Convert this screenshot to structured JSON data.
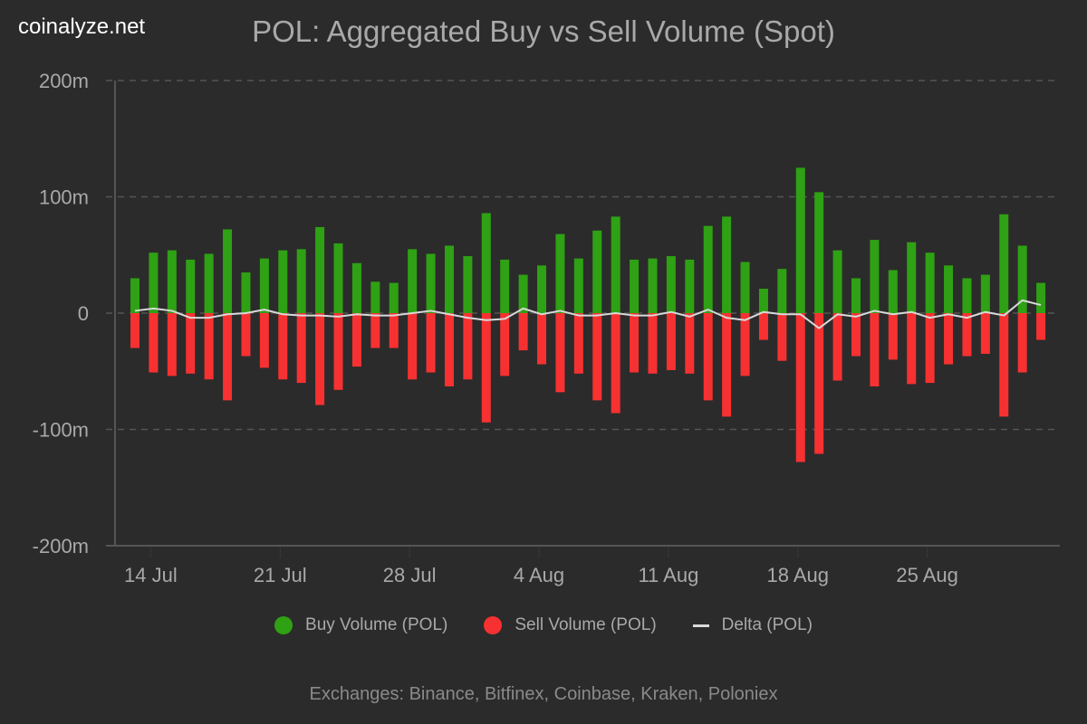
{
  "brand": "coinalyze.net",
  "chart_data": {
    "type": "bar",
    "title": "POL: Aggregated Buy vs Sell Volume (Spot)",
    "xlabel": "",
    "ylabel": "",
    "ylim": [
      -200,
      200
    ],
    "y_unit": "m",
    "y_ticks": [
      {
        "value": 200,
        "label": "200m"
      },
      {
        "value": 100,
        "label": "100m"
      },
      {
        "value": 0,
        "label": "0"
      },
      {
        "value": -100,
        "label": "-100m"
      },
      {
        "value": -200,
        "label": "-200m"
      }
    ],
    "x_ticks": [
      {
        "index": 1,
        "label": "14 Jul"
      },
      {
        "index": 8,
        "label": "21 Jul"
      },
      {
        "index": 15,
        "label": "28 Jul"
      },
      {
        "index": 22,
        "label": "4 Aug"
      },
      {
        "index": 29,
        "label": "11 Aug"
      },
      {
        "index": 36,
        "label": "18 Aug"
      },
      {
        "index": 43,
        "label": "25 Aug"
      }
    ],
    "grid": true,
    "legend_position": "bottom-center",
    "categories": [
      "13 Jul",
      "14 Jul",
      "15 Jul",
      "16 Jul",
      "17 Jul",
      "18 Jul",
      "19 Jul",
      "20 Jul",
      "21 Jul",
      "22 Jul",
      "23 Jul",
      "24 Jul",
      "25 Jul",
      "26 Jul",
      "27 Jul",
      "28 Jul",
      "29 Jul",
      "30 Jul",
      "31 Jul",
      "1 Aug",
      "2 Aug",
      "3 Aug",
      "4 Aug",
      "5 Aug",
      "6 Aug",
      "7 Aug",
      "8 Aug",
      "9 Aug",
      "10 Aug",
      "11 Aug",
      "12 Aug",
      "13 Aug",
      "14 Aug",
      "15 Aug",
      "16 Aug",
      "17 Aug",
      "18 Aug",
      "19 Aug",
      "20 Aug",
      "21 Aug",
      "22 Aug",
      "23 Aug",
      "24 Aug",
      "25 Aug",
      "26 Aug",
      "27 Aug",
      "28 Aug",
      "29 Aug",
      "30 Aug",
      "31 Aug"
    ],
    "series": [
      {
        "name": "Buy Volume (POL)",
        "type": "bar",
        "color": "#2fa114",
        "values": [
          30,
          52,
          54,
          46,
          51,
          72,
          35,
          47,
          54,
          55,
          74,
          60,
          43,
          27,
          26,
          55,
          51,
          58,
          49,
          86,
          46,
          33,
          41,
          68,
          47,
          71,
          83,
          46,
          47,
          49,
          46,
          75,
          83,
          44,
          21,
          38,
          125,
          104,
          54,
          30,
          63,
          37,
          61,
          52,
          41,
          30,
          33,
          85,
          58,
          26
        ]
      },
      {
        "name": "Sell Volume (POL)",
        "type": "bar",
        "color": "#f73131",
        "values": [
          -30,
          -51,
          -54,
          -52,
          -57,
          -75,
          -37,
          -47,
          -57,
          -60,
          -79,
          -66,
          -46,
          -30,
          -30,
          -57,
          -51,
          -63,
          -57,
          -94,
          -54,
          -32,
          -44,
          -68,
          -52,
          -75,
          -86,
          -51,
          -52,
          -49,
          -52,
          -75,
          -89,
          -54,
          -23,
          -41,
          -128,
          -121,
          -58,
          -37,
          -63,
          -40,
          -61,
          -60,
          -44,
          -37,
          -35,
          -89,
          -51,
          -23
        ]
      },
      {
        "name": "Delta (POL)",
        "type": "line",
        "color": "#d9d9d9",
        "values": [
          2,
          4,
          2,
          -4,
          -4,
          -1,
          0,
          3,
          -1,
          -2,
          -2,
          -3,
          -1,
          -2,
          -2,
          0,
          2,
          -1,
          -4,
          -6,
          -5,
          4,
          -1,
          2,
          -2,
          -2,
          0,
          -2,
          -2,
          1,
          -3,
          3,
          -4,
          -6,
          1,
          -1,
          -1,
          -13,
          -1,
          -3,
          2,
          -1,
          1,
          -4,
          -1,
          -4,
          1,
          -2,
          11,
          7
        ]
      }
    ]
  },
  "legend": [
    {
      "label": "Buy Volume (POL)",
      "color": "#2fa114",
      "marker": "dot"
    },
    {
      "label": "Sell Volume (POL)",
      "color": "#f73131",
      "marker": "dot"
    },
    {
      "label": "Delta (POL)",
      "color": "#d9d9d9",
      "marker": "line"
    }
  ],
  "footer": "Exchanges: Binance, Bitfinex, Coinbase, Kraken, Poloniex",
  "colors": {
    "background": "#2b2b2b",
    "grid": "#555555",
    "axis": "#555555",
    "text": "#a9a9a9"
  }
}
